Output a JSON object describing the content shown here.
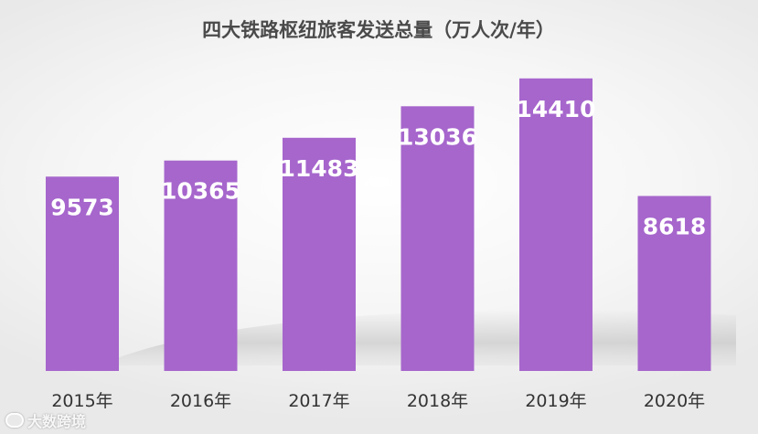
{
  "chart_data": {
    "type": "bar",
    "title": "四大铁路枢纽旅客发送总量（万人次/年）",
    "categories": [
      "2015年",
      "2016年",
      "2017年",
      "2018年",
      "2019年",
      "2020年"
    ],
    "values": [
      9573,
      10365,
      11483,
      13036,
      14410,
      8618
    ],
    "data_labels": [
      "9573",
      "10365",
      "11483",
      "13036",
      "14410",
      "8618"
    ],
    "ylim": [
      0,
      15300
    ],
    "grid": false,
    "legend": "none",
    "bar_color": "#a666cc"
  },
  "watermark": {
    "text": "大数跨境",
    "icon": "brand-logo-icon"
  }
}
